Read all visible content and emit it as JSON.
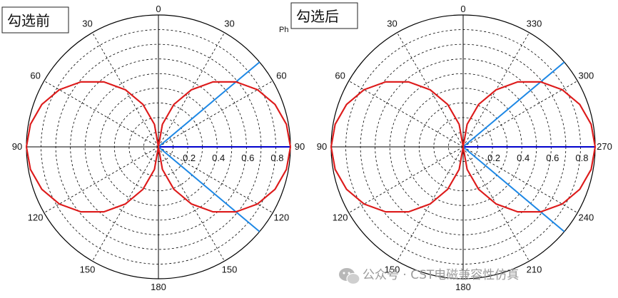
{
  "chart_data": [
    {
      "type": "polar-line",
      "title": "勾选前",
      "angle_labels": [
        "0",
        "30",
        "60",
        "90",
        "120",
        "150",
        "180",
        "150",
        "120",
        "90",
        "60",
        "30"
      ],
      "radial_ticks": [
        "0.2",
        "0.4",
        "0.6",
        "0.8"
      ],
      "rlim": [
        0,
        0.9
      ],
      "grid": true,
      "series": [
        {
          "color": "#dd1c1c",
          "theta_deg": [
            0,
            10,
            20,
            30,
            40,
            50,
            60,
            70,
            80,
            90,
            100,
            110,
            120,
            130,
            140,
            150,
            160,
            170,
            180,
            190,
            200,
            210,
            220,
            230,
            240,
            250,
            260,
            270,
            280,
            290,
            300,
            310,
            320,
            330,
            340,
            350,
            360
          ],
          "r": [
            0.0,
            0.156,
            0.308,
            0.45,
            0.579,
            0.69,
            0.78,
            0.846,
            0.886,
            0.9,
            0.886,
            0.846,
            0.78,
            0.69,
            0.579,
            0.45,
            0.308,
            0.156,
            0.0,
            0.156,
            0.308,
            0.45,
            0.579,
            0.69,
            0.78,
            0.846,
            0.886,
            0.9,
            0.886,
            0.846,
            0.78,
            0.69,
            0.579,
            0.45,
            0.308,
            0.156,
            0.0
          ]
        }
      ],
      "markers": [
        {
          "color": "#0000cc",
          "theta_deg": 90
        },
        {
          "color": "#1e88e5",
          "theta_deg": 50
        },
        {
          "color": "#1e88e5",
          "theta_deg": 130
        }
      ],
      "stray_text": "Ph"
    },
    {
      "type": "polar-line",
      "title": "勾选后",
      "angle_labels": [
        "0",
        "330",
        "300",
        "270",
        "240",
        "210",
        "180",
        "150",
        "120",
        "90",
        "60",
        "30"
      ],
      "radial_ticks": [
        "0.2",
        "0.4",
        "0.6",
        "0.8"
      ],
      "rlim": [
        0,
        0.9
      ],
      "grid": true,
      "series": [
        {
          "color": "#dd1c1c",
          "theta_deg": [
            0,
            10,
            20,
            30,
            40,
            50,
            60,
            70,
            80,
            90,
            100,
            110,
            120,
            130,
            140,
            150,
            160,
            170,
            180,
            190,
            200,
            210,
            220,
            230,
            240,
            250,
            260,
            270,
            280,
            290,
            300,
            310,
            320,
            330,
            340,
            350,
            360
          ],
          "r": [
            0.0,
            0.156,
            0.308,
            0.45,
            0.579,
            0.69,
            0.78,
            0.846,
            0.886,
            0.9,
            0.886,
            0.846,
            0.78,
            0.69,
            0.579,
            0.45,
            0.308,
            0.156,
            0.0,
            0.156,
            0.308,
            0.45,
            0.579,
            0.69,
            0.78,
            0.846,
            0.886,
            0.9,
            0.886,
            0.846,
            0.78,
            0.69,
            0.579,
            0.45,
            0.308,
            0.156,
            0.0
          ]
        }
      ],
      "markers": [
        {
          "color": "#0000cc",
          "theta_deg": 90
        },
        {
          "color": "#1e88e5",
          "theta_deg": 50
        },
        {
          "color": "#1e88e5",
          "theta_deg": 130
        }
      ]
    }
  ],
  "watermark": {
    "icon": "wechat-icon",
    "text": "公众号 · CST电磁兼容性仿真"
  }
}
